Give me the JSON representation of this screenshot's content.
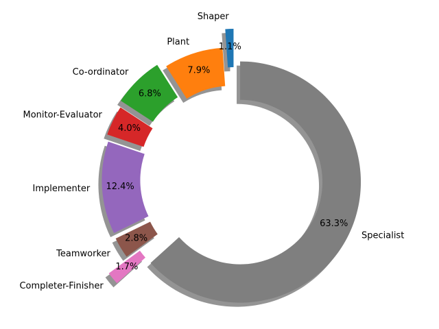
{
  "chart_data": {
    "type": "pie",
    "style": "donut",
    "title": "",
    "categories": [
      "Shaper",
      "Plant",
      "Co-ordinator",
      "Monitor-Evaluator",
      "Implementer",
      "Teamworker",
      "Completer-Finisher",
      "Specialist"
    ],
    "values": [
      1.1,
      7.9,
      6.8,
      4.0,
      12.4,
      2.8,
      1.7,
      63.3
    ],
    "value_labels": [
      "1.1%",
      "7.9%",
      "6.8%",
      "4.0%",
      "12.4%",
      "2.8%",
      "1.7%",
      "63.3%"
    ],
    "colors": [
      "#1f77b4",
      "#ff7f0e",
      "#2ca02c",
      "#d62728",
      "#9467bd",
      "#8c564b",
      "#e377c2",
      "#7f7f7f"
    ],
    "explode": [
      0.25,
      0.1,
      0.15,
      0.12,
      0.1,
      0.1,
      0.3,
      0.05
    ],
    "start_angle_deg": 90,
    "direction": "counterclockwise",
    "shadow": true,
    "legend": "none"
  }
}
